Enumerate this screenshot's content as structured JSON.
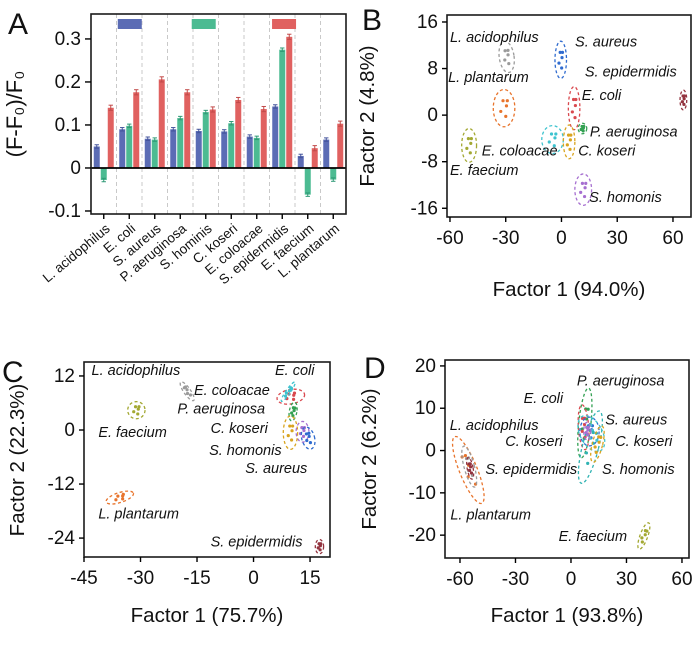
{
  "figure_title": "",
  "chart_data": [
    {
      "id": "A",
      "type": "bar",
      "panel_letter": "A",
      "ylabel": "(F-F₀)/F₀",
      "xlabel": "",
      "yticks": [
        -0.1,
        0,
        0.1,
        0.2,
        0.3
      ],
      "ylim": [
        -0.107,
        0.358
      ],
      "grid": "dashed-vertical-between-groups",
      "categories": [
        "L. acidophilus",
        "E. coli",
        "S. aureus",
        "P. aeruginosa",
        "S. hominis",
        "C. koseri",
        "E. coloacae",
        "S. epidermidis",
        "E. faecium",
        "L. plantarum"
      ],
      "series": [
        {
          "name": "series-blue",
          "color": "#5b6cb5",
          "err_color": "#44549c",
          "err": 0.004,
          "values": [
            0.05,
            0.09,
            0.068,
            0.09,
            0.086,
            0.085,
            0.073,
            0.143,
            0.028,
            0.066
          ]
        },
        {
          "name": "series-green",
          "color": "#4cbb92",
          "err_color": "#2f9a76",
          "err": 0.004,
          "values": [
            -0.028,
            0.098,
            0.066,
            0.116,
            0.13,
            0.104,
            0.07,
            0.275,
            -0.062,
            -0.027
          ]
        },
        {
          "name": "series-red",
          "color": "#e06160",
          "err_color": "#c24a49",
          "err": 0.006,
          "values": [
            0.14,
            0.176,
            0.206,
            0.176,
            0.136,
            0.158,
            0.137,
            0.305,
            0.046,
            0.103
          ]
        }
      ],
      "legend_swatches": [
        {
          "color": "#5b6cb5",
          "fx": 0.105
        },
        {
          "color": "#4cbb92",
          "fx": 0.395
        },
        {
          "color": "#e06160",
          "fx": 0.71
        }
      ]
    },
    {
      "id": "B",
      "type": "scatter",
      "panel_letter": "B",
      "xlabel": "Factor 1 (94.0%)",
      "ylabel": "Factor 2 (4.8%)",
      "xticks": [
        -60,
        -30,
        0,
        30,
        60
      ],
      "yticks": [
        16,
        8,
        0,
        -8,
        -16
      ],
      "xlim": [
        -61.6,
        69.7
      ],
      "ylim": [
        -17.5,
        17.2
      ],
      "ellipses": [
        {
          "name": "L. acidophilus",
          "color": "#9b9b9b",
          "cx": -29.5,
          "cy": 10.0,
          "rx": 4.0,
          "ry": 2.7,
          "rot": -8
        },
        {
          "name": "S. aureus",
          "color": "#2f6bcf",
          "cx": -0.4,
          "cy": 9.5,
          "rx": 3.1,
          "ry": 3.2,
          "rot": 0
        },
        {
          "name": "L. plantarum",
          "color": "#e8742c",
          "cx": -30.9,
          "cy": 1.2,
          "rx": 5.8,
          "ry": 3.2,
          "rot": 0
        },
        {
          "name": "S. epidermidis",
          "color": "#93333f",
          "cx": 65.6,
          "cy": 2.6,
          "rx": 1.8,
          "ry": 1.7,
          "rot": 0
        },
        {
          "name": "E. coli",
          "color": "#d9494f",
          "cx": 6.8,
          "cy": 1.2,
          "rx": 3.1,
          "ry": 3.7,
          "rot": 0
        },
        {
          "name": "P. aeruginosa",
          "color": "#33a153",
          "cx": 11.3,
          "cy": -2.3,
          "rx": 2.3,
          "ry": 0.9,
          "rot": 0
        },
        {
          "name": "E. coloacae",
          "color": "#3ec3cf",
          "cx": -4.8,
          "cy": -4.2,
          "rx": 5.8,
          "ry": 2.4,
          "rot": 0
        },
        {
          "name": "C. koseri",
          "color": "#d9a41f",
          "cx": 4.1,
          "cy": -4.6,
          "rx": 3.1,
          "ry": 2.9,
          "rot": 0
        },
        {
          "name": "E. faecium",
          "color": "#a3a832",
          "cx": -49.7,
          "cy": -5.2,
          "rx": 4.0,
          "ry": 2.9,
          "rot": 0
        },
        {
          "name": "S. homonis",
          "color": "#a66fd0",
          "cx": 11.7,
          "cy": -12.8,
          "rx": 4.5,
          "ry": 2.7,
          "rot": 0
        }
      ],
      "labels": [
        {
          "text": "L. acidophilus",
          "x": -60.0,
          "y": 12.6
        },
        {
          "text": "S. aureus",
          "x": 7.3,
          "y": 11.8
        },
        {
          "text": "L. plantarum",
          "x": -61.0,
          "y": 5.7
        },
        {
          "text": "S. epidermidis",
          "x": 12.6,
          "y": 6.6
        },
        {
          "text": "E. coli",
          "x": 10.9,
          "y": 2.6
        },
        {
          "text": "P. aeruginosa",
          "x": 15.3,
          "y": -3.7
        },
        {
          "text": "E. coloacae",
          "x": -42.9,
          "y": -6.9
        },
        {
          "text": "C. koseri",
          "x": 9.0,
          "y": -6.9
        },
        {
          "text": "E. faecium",
          "x": -60.0,
          "y": -10.3
        },
        {
          "text": "S. homonis",
          "x": 14.9,
          "y": -14.9
        }
      ]
    },
    {
      "id": "C",
      "type": "scatter",
      "panel_letter": "C",
      "xlabel": "Factor 1 (75.7%)",
      "ylabel": "Factor 2 (22.3%)",
      "xticks": [
        -45,
        -30,
        -15,
        0,
        15
      ],
      "yticks": [
        12,
        0,
        -12,
        -24
      ],
      "xlim": [
        -45,
        20.3
      ],
      "ylim": [
        -28.2,
        15.1
      ],
      "ellipses": [
        {
          "name": "L. acidophilus",
          "color": "#9b9b9b",
          "cx": -17.6,
          "cy": 8.6,
          "rx": 0.9,
          "ry": 2.5,
          "rot": -35
        },
        {
          "name": "E. faecium",
          "color": "#a3a832",
          "cx": -31.1,
          "cy": 4.4,
          "rx": 2.3,
          "ry": 1.9,
          "rot": 0
        },
        {
          "name": "E. coli",
          "color": "#d9494f",
          "cx": 9.9,
          "cy": 7.4,
          "rx": 3.7,
          "ry": 1.6,
          "rot": -10
        },
        {
          "name": "E. coloacae",
          "color": "#3ec3cf",
          "cx": 9.2,
          "cy": 8.5,
          "rx": 0.6,
          "ry": 2.6,
          "rot": 35
        },
        {
          "name": "P. aeruginosa",
          "color": "#33a153",
          "cx": 10.5,
          "cy": 4.1,
          "rx": 1.0,
          "ry": 2.1,
          "rot": 10
        },
        {
          "name": "C. koseri",
          "color": "#d9a41f",
          "cx": 9.8,
          "cy": -0.6,
          "rx": 1.9,
          "ry": 3.7,
          "rot": 0
        },
        {
          "name": "S. homonis",
          "color": "#a66fd0",
          "cx": 13.0,
          "cy": -0.4,
          "rx": 1.7,
          "ry": 2.3,
          "rot": 0
        },
        {
          "name": "S. aureus",
          "color": "#2f6bcf",
          "cx": 14.5,
          "cy": -1.8,
          "rx": 1.7,
          "ry": 2.5,
          "rot": -15
        },
        {
          "name": "L. plantarum",
          "color": "#e8742c",
          "cx": -35.5,
          "cy": -15.0,
          "rx": 3.8,
          "ry": 1.1,
          "rot": -18
        },
        {
          "name": "S. epidermidis",
          "color": "#93333f",
          "cx": 17.5,
          "cy": -25.9,
          "rx": 1.1,
          "ry": 1.6,
          "rot": 0
        }
      ],
      "labels": [
        {
          "text": "L. acidophilus",
          "x": -43.0,
          "y": 12.2
        },
        {
          "text": "E. coli",
          "x": 5.7,
          "y": 12.2
        },
        {
          "text": "E. coloacae",
          "x": -15.8,
          "y": 7.8
        },
        {
          "text": "P. aeruginosa",
          "x": -20.2,
          "y": 3.7
        },
        {
          "text": "C. koseri",
          "x": -11.4,
          "y": -0.7
        },
        {
          "text": "S. homonis",
          "x": -11.8,
          "y": -5.6
        },
        {
          "text": "S. aureus",
          "x": -2.2,
          "y": -9.6
        },
        {
          "text": "E. faecium",
          "x": -41.2,
          "y": -1.5
        },
        {
          "text": "L. plantarum",
          "x": -41.2,
          "y": -19.6
        },
        {
          "text": "S. epidermidis",
          "x": -11.4,
          "y": -25.9
        }
      ]
    },
    {
      "id": "D",
      "type": "scatter",
      "panel_letter": "D",
      "xlabel": "Factor 1 (93.8%)",
      "ylabel": "Factor 2 (6.2%)",
      "xticks": [
        -60,
        -30,
        0,
        30,
        60
      ],
      "yticks": [
        20,
        10,
        0,
        -10,
        -20
      ],
      "xlim": [
        -68.1,
        63.8
      ],
      "ylim": [
        -25.4,
        21.4
      ],
      "ellipses": [
        {
          "name": "L. plantarum",
          "color": "#e8742c",
          "cx": -55.5,
          "cy": -4.6,
          "rx": 4.8,
          "ry": 8.5,
          "rot": -22
        },
        {
          "name": "L. acidophilus",
          "color": "#9b9b9b",
          "cx": -55.0,
          "cy": -3.8,
          "rx": 2.8,
          "ry": 5.0,
          "rot": -15
        },
        {
          "name": "S. epidermidis",
          "color": "#93333f",
          "cx": -54.5,
          "cy": -4.2,
          "rx": 1.6,
          "ry": 2.6,
          "rot": -10
        },
        {
          "name": "P. aeruginosa",
          "color": "#33a153",
          "cx": 7.5,
          "cy": 6.5,
          "rx": 3.3,
          "ry": 8.3,
          "rot": 6
        },
        {
          "name": "E. coli",
          "color": "#d9494f",
          "cx": 6.8,
          "cy": 5.5,
          "rx": 2.8,
          "ry": 5.3,
          "rot": -4
        },
        {
          "name": "S. aureus",
          "color": "#2f6bcf",
          "cx": 10.0,
          "cy": 4.5,
          "rx": 5.2,
          "ry": 3.4,
          "rot": 0
        },
        {
          "name": "E. coloacae",
          "color": "#3ec3cf",
          "cx": 11.0,
          "cy": 4.0,
          "rx": 6.0,
          "ry": 4.6,
          "rot": -28
        },
        {
          "name": "S. homonis",
          "color": "#2fb3b3",
          "cx": 10.5,
          "cy": 0.8,
          "rx": 4.4,
          "ry": 8.8,
          "rot": 14
        },
        {
          "name": "C. koseri",
          "color": "#d9a41f",
          "cx": 14.3,
          "cy": 1.5,
          "rx": 2.8,
          "ry": 4.4,
          "rot": 14
        },
        {
          "name": "cluster-purple",
          "color": "#a66fd0",
          "cx": 8.8,
          "cy": 4.6,
          "rx": 1.9,
          "ry": 2.1,
          "rot": 0
        },
        {
          "name": "E. faecium",
          "color": "#a3a832",
          "cx": 39.4,
          "cy": -20.2,
          "rx": 2.1,
          "ry": 3.3,
          "rot": 20
        }
      ],
      "labels": [
        {
          "text": "P. aeruginosa",
          "x": 3.2,
          "y": 15.4
        },
        {
          "text": "E. coli",
          "x": -25.6,
          "y": 11.2
        },
        {
          "text": "L. acidophilus",
          "x": -65.5,
          "y": 4.9
        },
        {
          "text": "C. koseri",
          "x": -35.5,
          "y": 1.1
        },
        {
          "text": "S. aureus",
          "x": 18.5,
          "y": 6.1
        },
        {
          "text": "C. koseri",
          "x": 23.9,
          "y": 1.1
        },
        {
          "text": "S. epidermidis",
          "x": -46.3,
          "y": -5.6
        },
        {
          "text": "S. homonis",
          "x": 16.8,
          "y": -5.6
        },
        {
          "text": "L. plantarum",
          "x": -65.2,
          "y": -16.3
        },
        {
          "text": "E. faecium",
          "x": -6.7,
          "y": -21.4
        }
      ]
    }
  ],
  "style": {
    "axis_color": "#1a1a1a",
    "grid_color": "#c9c9c9",
    "text_color": "#111111",
    "background": "#ffffff"
  }
}
